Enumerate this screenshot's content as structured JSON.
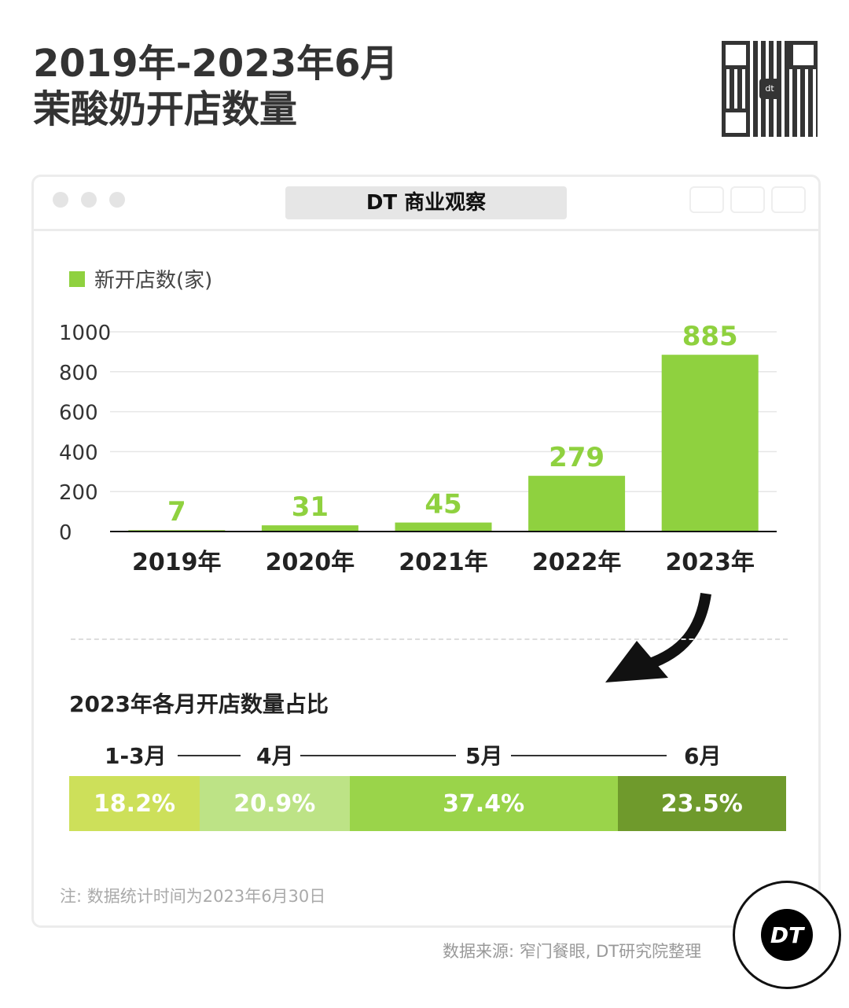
{
  "header": {
    "title_line1": "2019年-2023年6月",
    "title_line2": "茉酸奶开店数量"
  },
  "window": {
    "tab_title": "DT 商业观察"
  },
  "chart_data": {
    "type": "bar",
    "legend": "新开店数(家)",
    "legend_placement": "top-left",
    "categories": [
      "2019年",
      "2020年",
      "2021年",
      "2022年",
      "2023年"
    ],
    "values": [
      7,
      31,
      45,
      279,
      885
    ],
    "yticks": [
      "0",
      "200",
      "400",
      "600",
      "800",
      "1000"
    ],
    "ylim": [
      0,
      1000
    ],
    "grid": true,
    "bar_color": "#8fd13f",
    "label_color": "#8fd13f"
  },
  "breakdown": {
    "title": "2023年各月开店数量占比",
    "segments": [
      {
        "label": "1-3月",
        "value": "18.2%",
        "pct": 18.2,
        "color": "#cde05a"
      },
      {
        "label": "4月",
        "value": "20.9%",
        "pct": 20.9,
        "color": "#bde386"
      },
      {
        "label": "5月",
        "value": "37.4%",
        "pct": 37.4,
        "color": "#9ad44a"
      },
      {
        "label": "6月",
        "value": "23.5%",
        "pct": 23.5,
        "color": "#6f9a2c"
      }
    ]
  },
  "footer": {
    "note": "注: 数据统计时间为2023年6月30日",
    "source": "数据来源: 窄门餐眼, DT研究院整理",
    "logo": "DT"
  }
}
